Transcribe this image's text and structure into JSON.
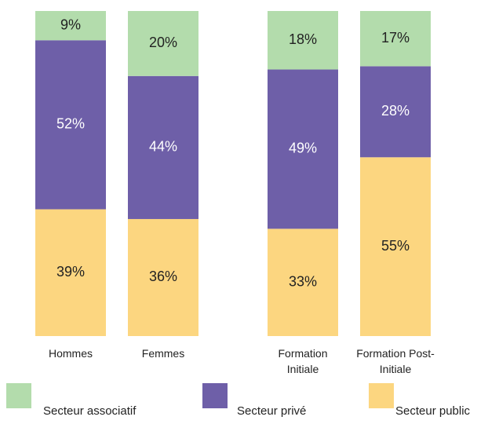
{
  "chart_data": {
    "type": "stacked_bar_100",
    "categories": [
      "Hommes",
      "Femmes",
      "Formation Initiale",
      "Formation Post-Initiale"
    ],
    "series": [
      {
        "name": "Secteur associatif",
        "color": "#b3dcac",
        "label_color": "#222222",
        "values": [
          9,
          20,
          18,
          17
        ],
        "value_labels": [
          "9%",
          "20%",
          "18%",
          "17%"
        ]
      },
      {
        "name": "Secteur privé",
        "color": "#6e5fa8",
        "label_color": "#ffffff",
        "values": [
          52,
          44,
          49,
          28
        ],
        "value_labels": [
          "52%",
          "44%",
          "49%",
          "28%"
        ]
      },
      {
        "name": "Secteur public",
        "color": "#fcd680",
        "label_color": "#222222",
        "values": [
          39,
          36,
          33,
          55
        ],
        "value_labels": [
          "39%",
          "36%",
          "33%",
          "55%"
        ]
      }
    ],
    "ylim": [
      0,
      100
    ],
    "legend": "bottom"
  }
}
